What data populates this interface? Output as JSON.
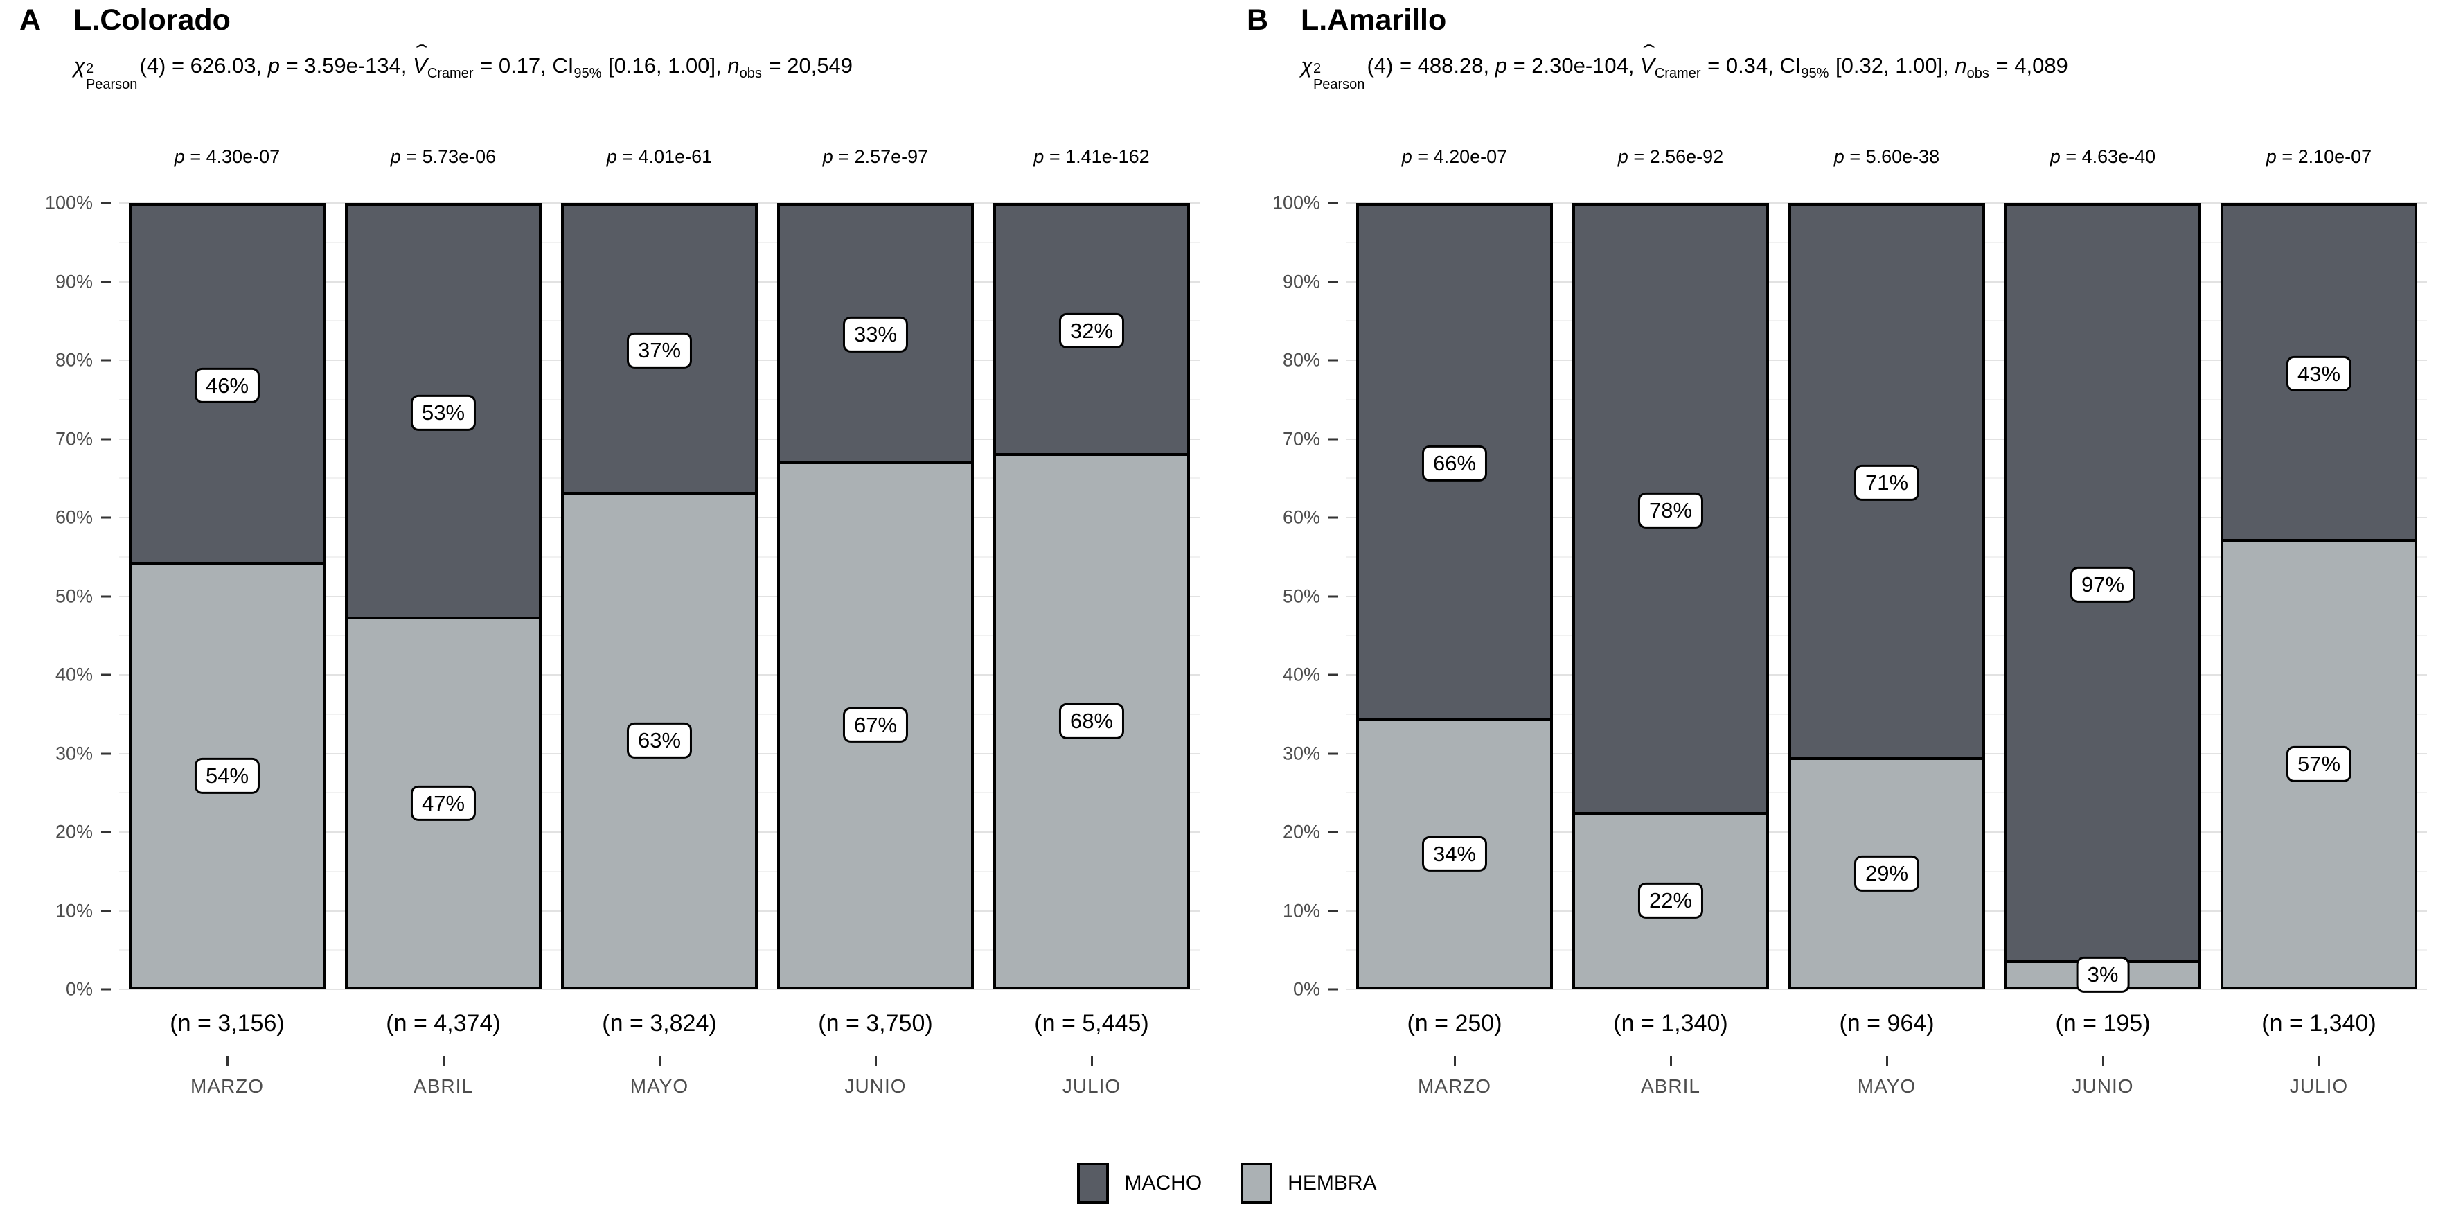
{
  "y_axis": {
    "ticks": [
      "0%",
      "10%",
      "20%",
      "30%",
      "40%",
      "50%",
      "60%",
      "70%",
      "80%",
      "90%",
      "100%"
    ]
  },
  "stats_symbols": {
    "chi": "χ",
    "chi_sup": "2",
    "chi_sub": "Pearson",
    "p": "p",
    "v": "V",
    "v_hat": "ˆ",
    "v_sub": "Cramer",
    "ci": "CI",
    "ci_sub": "95%",
    "n": "n",
    "n_sub": "obs"
  },
  "colors": {
    "MACHO": "#585C64",
    "HEMBRA": "#ABB1B4",
    "bar_border": "#000000",
    "grid_major": "#E2E2E2",
    "grid_minor": "#F1F1F1",
    "axis_text": "#4D4D4D"
  },
  "legend": {
    "items": [
      {
        "label": "MACHO",
        "color": "#585C64"
      },
      {
        "label": "HEMBRA",
        "color": "#ABB1B4"
      }
    ]
  },
  "chart_data": [
    {
      "type": "bar",
      "variant": "stacked-percent",
      "panel_tag": "A",
      "title": "L.Colorado",
      "stats": {
        "chi_text": "(4) = 626.03, ",
        "p_text": " = 3.59e-134, ",
        "v_text": " = 0.17, ",
        "ci_text": " [0.16, 1.00], ",
        "n_text": " = 20,549",
        "chi_value": 626.03,
        "df": 4,
        "p_value": "3.59e-134",
        "v_cramer": 0.17,
        "ci95": [
          0.16,
          1.0
        ],
        "n_obs": 20549
      },
      "categories": [
        "MARZO",
        "ABRIL",
        "MAYO",
        "JUNIO",
        "JULIO"
      ],
      "series": [
        {
          "name": "MACHO",
          "values": [
            46,
            53,
            37,
            33,
            32
          ]
        },
        {
          "name": "HEMBRA",
          "values": [
            54,
            47,
            63,
            67,
            68
          ]
        }
      ],
      "ylim": [
        0,
        100
      ],
      "grid": true,
      "legend_position": "bottom",
      "bars": [
        {
          "month": "MARZO",
          "p_text": " = 4.30e-07",
          "p_value": "4.30e-07",
          "n": 3156,
          "n_label": "(n = 3,156)",
          "MACHO": 46,
          "HEMBRA": 54,
          "MACHO_label": "46%",
          "HEMBRA_label": "54%"
        },
        {
          "month": "ABRIL",
          "p_text": " = 5.73e-06",
          "p_value": "5.73e-06",
          "n": 4374,
          "n_label": "(n = 4,374)",
          "MACHO": 53,
          "HEMBRA": 47,
          "MACHO_label": "53%",
          "HEMBRA_label": "47%"
        },
        {
          "month": "MAYO",
          "p_text": " = 4.01e-61",
          "p_value": "4.01e-61",
          "n": 3824,
          "n_label": "(n = 3,824)",
          "MACHO": 37,
          "HEMBRA": 63,
          "MACHO_label": "37%",
          "HEMBRA_label": "63%"
        },
        {
          "month": "JUNIO",
          "p_text": " = 2.57e-97",
          "p_value": "2.57e-97",
          "n": 3750,
          "n_label": "(n = 3,750)",
          "MACHO": 33,
          "HEMBRA": 67,
          "MACHO_label": "33%",
          "HEMBRA_label": "67%"
        },
        {
          "month": "JULIO",
          "p_text": " = 1.41e-162",
          "p_value": "1.41e-162",
          "n": 5445,
          "n_label": "(n = 5,445)",
          "MACHO": 32,
          "HEMBRA": 68,
          "MACHO_label": "32%",
          "HEMBRA_label": "68%"
        }
      ]
    },
    {
      "type": "bar",
      "variant": "stacked-percent",
      "panel_tag": "B",
      "title": "L.Amarillo",
      "stats": {
        "chi_text": "(4) = 488.28, ",
        "p_text": " = 2.30e-104, ",
        "v_text": " = 0.34, ",
        "ci_text": " [0.32, 1.00], ",
        "n_text": " = 4,089",
        "chi_value": 488.28,
        "df": 4,
        "p_value": "2.30e-104",
        "v_cramer": 0.34,
        "ci95": [
          0.32,
          1.0
        ],
        "n_obs": 4089
      },
      "categories": [
        "MARZO",
        "ABRIL",
        "MAYO",
        "JUNIO",
        "JULIO"
      ],
      "series": [
        {
          "name": "MACHO",
          "values": [
            66,
            78,
            71,
            97,
            43
          ]
        },
        {
          "name": "HEMBRA",
          "values": [
            34,
            22,
            29,
            3,
            57
          ]
        }
      ],
      "ylim": [
        0,
        100
      ],
      "grid": true,
      "legend_position": "bottom",
      "bars": [
        {
          "month": "MARZO",
          "p_text": " = 4.20e-07",
          "p_value": "4.20e-07",
          "n": 250,
          "n_label": "(n = 250)",
          "MACHO": 66,
          "HEMBRA": 34,
          "MACHO_label": "66%",
          "HEMBRA_label": "34%"
        },
        {
          "month": "ABRIL",
          "p_text": " = 2.56e-92",
          "p_value": "2.56e-92",
          "n": 1340,
          "n_label": "(n = 1,340)",
          "MACHO": 78,
          "HEMBRA": 22,
          "MACHO_label": "78%",
          "HEMBRA_label": "22%"
        },
        {
          "month": "MAYO",
          "p_text": " = 5.60e-38",
          "p_value": "5.60e-38",
          "n": 964,
          "n_label": "(n = 964)",
          "MACHO": 71,
          "HEMBRA": 29,
          "MACHO_label": "71%",
          "HEMBRA_label": "29%"
        },
        {
          "month": "JUNIO",
          "p_text": " = 4.63e-40",
          "p_value": "4.63e-40",
          "n": 195,
          "n_label": "(n = 195)",
          "MACHO": 97,
          "HEMBRA": 3,
          "MACHO_label": "97%",
          "HEMBRA_label": "3%"
        },
        {
          "month": "JULIO",
          "p_text": " = 2.10e-07",
          "p_value": "2.10e-07",
          "n": 1340,
          "n_label": "(n = 1,340)",
          "MACHO": 43,
          "HEMBRA": 57,
          "MACHO_label": "43%",
          "HEMBRA_label": "57%"
        }
      ]
    }
  ]
}
